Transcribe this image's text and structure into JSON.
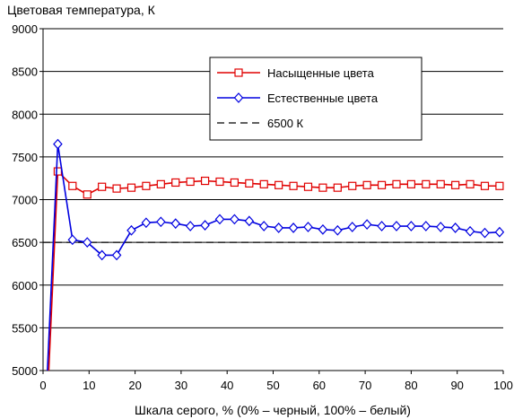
{
  "chart_data": {
    "type": "line",
    "ylabel": "Цветовая температура, К",
    "xlabel": "Шкала серого, % (0% – черный, 100% – белый)",
    "xlim": [
      0,
      100
    ],
    "ylim": [
      5000,
      9000
    ],
    "xticks": [
      0,
      10,
      20,
      30,
      40,
      50,
      60,
      70,
      80,
      90,
      100
    ],
    "yticks": [
      5000,
      5500,
      6000,
      6500,
      7000,
      7500,
      8000,
      8500,
      9000
    ],
    "grid": "horizontal",
    "legend_position": "top-right",
    "series": [
      {
        "name": "Насыщенные цвета",
        "color": "#e00000",
        "marker": "square",
        "x": [
          1.2,
          3.2,
          6.4,
          9.6,
          12.8,
          16.0,
          19.2,
          22.4,
          25.6,
          28.8,
          32.0,
          35.2,
          38.4,
          41.6,
          44.8,
          48.0,
          51.2,
          54.4,
          57.6,
          60.8,
          64.0,
          67.2,
          70.4,
          73.6,
          76.8,
          80.0,
          83.2,
          86.4,
          89.6,
          92.8,
          96.0,
          99.2
        ],
        "y": [
          4950,
          7330,
          7160,
          7060,
          7150,
          7130,
          7140,
          7160,
          7180,
          7200,
          7210,
          7220,
          7210,
          7200,
          7190,
          7180,
          7170,
          7160,
          7150,
          7140,
          7140,
          7160,
          7170,
          7170,
          7180,
          7180,
          7180,
          7180,
          7170,
          7180,
          7160,
          7160
        ]
      },
      {
        "name": "Естественные цвета",
        "color": "#0000e0",
        "marker": "diamond",
        "x": [
          0.9,
          3.2,
          6.4,
          9.6,
          12.8,
          16.0,
          19.2,
          22.4,
          25.6,
          28.8,
          32.0,
          35.2,
          38.4,
          41.6,
          44.8,
          48.0,
          51.2,
          54.4,
          57.6,
          60.8,
          64.0,
          67.2,
          70.4,
          73.6,
          76.8,
          80.0,
          83.2,
          86.4,
          89.6,
          92.8,
          96.0,
          99.2
        ],
        "y": [
          4950,
          7650,
          6530,
          6500,
          6350,
          6350,
          6640,
          6730,
          6740,
          6720,
          6690,
          6700,
          6770,
          6770,
          6750,
          6690,
          6670,
          6670,
          6680,
          6650,
          6640,
          6680,
          6710,
          6690,
          6690,
          6690,
          6690,
          6680,
          6670,
          6630,
          6610,
          6620
        ]
      },
      {
        "name": "6500 К",
        "color": "#000000",
        "marker": "none",
        "dash": "dashed",
        "x": [
          0,
          100
        ],
        "y": [
          6500,
          6500
        ]
      }
    ]
  }
}
